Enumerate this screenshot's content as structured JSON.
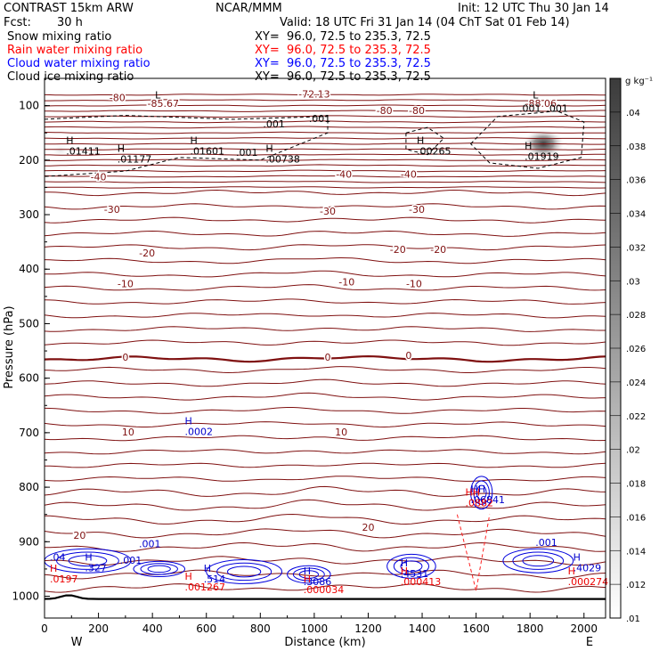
{
  "header": {
    "model": "CONTRAST 15km ARW",
    "org": "NCAR/MMM",
    "init": "Init: 12 UTC Thu 30 Jan 14",
    "fcst_label": "Fcst:",
    "fcst_value": "30 h",
    "valid": "Valid: 18 UTC Fri 31 Jan 14 (04 ChT Sat 01 Feb 14)",
    "fields": [
      {
        "name": "Snow mixing ratio",
        "xy": "XY=  96.0, 72.5 to 235.3, 72.5",
        "color": "#000000"
      },
      {
        "name": "Rain water mixing ratio",
        "xy": "XY=  96.0, 72.5 to 235.3, 72.5",
        "color": "#ff0000"
      },
      {
        "name": "Cloud water mixing ratio",
        "xy": "XY=  96.0, 72.5 to 235.3, 72.5",
        "color": "#0000ff"
      },
      {
        "name": "Cloud ice mixing ratio",
        "xy": "XY=  96.0, 72.5 to 235.3, 72.5",
        "color": "#000000"
      }
    ]
  },
  "chart_data": {
    "type": "contour",
    "xlabel": "Distance (km)",
    "ylabel": "Pressure (hPa)",
    "xlim": [
      0,
      2080
    ],
    "ylim": [
      1040,
      50
    ],
    "x_ticks": [
      0,
      200,
      400,
      600,
      800,
      1000,
      1200,
      1400,
      1600,
      1800,
      2000
    ],
    "y_ticks": [
      100,
      200,
      300,
      400,
      500,
      600,
      700,
      800,
      900,
      1000
    ],
    "left_end": "W",
    "right_end": "E",
    "temperature_contour_labels": [
      {
        "text": "-80",
        "x": 270,
        "p": 92
      },
      {
        "text": "-85.67",
        "x": 440,
        "p": 102
      },
      {
        "text": "-72.13",
        "x": 1000,
        "p": 85
      },
      {
        "text": "-88.06",
        "x": 1840,
        "p": 102
      },
      {
        "text": "-80",
        "x": 1260,
        "p": 115
      },
      {
        "text": "-80",
        "x": 1380,
        "p": 115
      },
      {
        "text": "-40",
        "x": 200,
        "p": 237
      },
      {
        "text": "-40",
        "x": 1110,
        "p": 232
      },
      {
        "text": "-40",
        "x": 1350,
        "p": 232
      },
      {
        "text": "-30",
        "x": 250,
        "p": 297
      },
      {
        "text": "-30",
        "x": 1050,
        "p": 300
      },
      {
        "text": "-30",
        "x": 1380,
        "p": 297
      },
      {
        "text": "-20",
        "x": 380,
        "p": 377
      },
      {
        "text": "-20",
        "x": 1310,
        "p": 370
      },
      {
        "text": "-20",
        "x": 1460,
        "p": 370
      },
      {
        "text": "-10",
        "x": 300,
        "p": 433
      },
      {
        "text": "-10",
        "x": 1120,
        "p": 430
      },
      {
        "text": "-10",
        "x": 1370,
        "p": 433
      },
      {
        "text": "0",
        "x": 300,
        "p": 568
      },
      {
        "text": "0",
        "x": 1050,
        "p": 568
      },
      {
        "text": "0",
        "x": 1350,
        "p": 565
      },
      {
        "text": "10",
        "x": 310,
        "p": 705
      },
      {
        "text": "10",
        "x": 1100,
        "p": 705
      },
      {
        "text": "20",
        "x": 130,
        "p": 895
      },
      {
        "text": "20",
        "x": 1200,
        "p": 880
      }
    ],
    "temperature_contour_levels": [
      -80,
      -70,
      -60,
      -50,
      -40,
      -30,
      -20,
      -10,
      0,
      10,
      20
    ],
    "zero_isotherm_p": 565,
    "snow_ice_labels": [
      {
        "marker": "H",
        "value": ".01411",
        "x": 80,
        "p": 170
      },
      {
        "marker": "H",
        "value": ".01177",
        "x": 270,
        "p": 185
      },
      {
        "marker": "H",
        "value": ".01601",
        "x": 540,
        "p": 170
      },
      {
        "marker": "H",
        "value": ".00738",
        "x": 820,
        "p": 185
      },
      {
        "marker": "H",
        "value": ".00265",
        "x": 1380,
        "p": 170
      },
      {
        "marker": "H",
        "value": ".01919",
        "x": 1780,
        "p": 180
      },
      {
        "marker": "",
        "value": ".001",
        "x": 810,
        "p": 140
      },
      {
        "marker": "",
        "value": ".001",
        "x": 980,
        "p": 130
      },
      {
        "marker": "",
        "value": ".001",
        "x": 710,
        "p": 192
      },
      {
        "marker": "",
        "value": ".001",
        "x": 1760,
        "p": 111
      },
      {
        "marker": "",
        "value": ".001",
        "x": 1860,
        "p": 111
      },
      {
        "marker": "L",
        "value": "",
        "x": 410,
        "p": 87
      },
      {
        "marker": "L",
        "value": "",
        "x": 1810,
        "p": 87
      }
    ],
    "cloud_water_labels": [
      {
        "marker": "H",
        "value": ".0002",
        "x": 520,
        "p": 685
      },
      {
        "marker": "",
        "value": ".001",
        "x": 350,
        "p": 910
      },
      {
        "marker": "",
        "value": ".001",
        "x": 280,
        "p": 940
      },
      {
        "marker": "",
        "value": ".04",
        "x": 20,
        "p": 935
      },
      {
        "marker": "H",
        "value": ".327",
        "x": 150,
        "p": 935
      },
      {
        "marker": "H",
        "value": ".514",
        "x": 590,
        "p": 955
      },
      {
        "marker": "H",
        "value": ".3086",
        "x": 960,
        "p": 960
      },
      {
        "marker": "H",
        "value": ".4531",
        "x": 1320,
        "p": 945
      },
      {
        "marker": "",
        "value": ".001",
        "x": 1820,
        "p": 908
      },
      {
        "marker": "H",
        "value": ".4029",
        "x": 1960,
        "p": 935
      },
      {
        "marker": "HH",
        "value": ".06841",
        "x": 1580,
        "p": 810
      }
    ],
    "rain_labels": [
      {
        "marker": "H",
        "value": ".0197",
        "x": 20,
        "p": 955
      },
      {
        "marker": "H",
        "value": ".001267",
        "x": 520,
        "p": 970
      },
      {
        "marker": "H",
        "value": ".000034",
        "x": 960,
        "p": 975
      },
      {
        "marker": "H",
        "value": ".000413",
        "x": 1320,
        "p": 960
      },
      {
        "marker": "HH",
        "value": ".0882",
        "x": 1560,
        "p": 815
      },
      {
        "marker": "H",
        "value": ".000274",
        "x": 1940,
        "p": 960
      }
    ],
    "colorbar": {
      "unit": "g kg⁻¹",
      "ticks": [
        ".04",
        ".038",
        ".036",
        ".034",
        ".032",
        ".03",
        ".028",
        ".026",
        ".024",
        ".022",
        ".02",
        ".018",
        ".016",
        ".014",
        ".012",
        ".01"
      ],
      "min": 0.01,
      "max": 0.042
    },
    "shading": [
      {
        "x": 1850,
        "p": 170,
        "value": 0.042
      },
      {
        "x": 60,
        "p": 182,
        "value": 0.014
      },
      {
        "x": 190,
        "p": 182,
        "value": 0.013
      }
    ]
  }
}
